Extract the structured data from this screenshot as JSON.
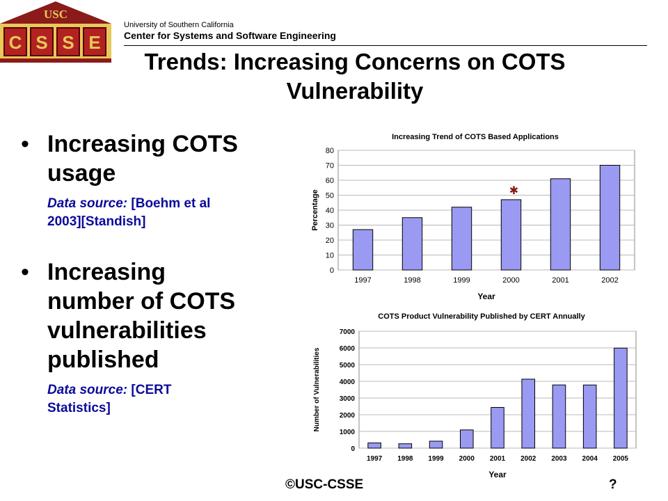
{
  "header": {
    "logo_top": "USC",
    "logo_letters": [
      "C",
      "S",
      "S",
      "E"
    ],
    "university": "University of Southern California",
    "center": "Center for Systems and Software Engineering"
  },
  "title": {
    "line1": "Trends: Increasing Concerns on COTS",
    "line2": "Vulnerability"
  },
  "bullets": [
    {
      "head_lines": [
        "Increasing COTS",
        "usage"
      ],
      "source_label": "Data source:",
      "source_lines": [
        "[Boehm et al",
        "2003][Standish]"
      ]
    },
    {
      "head_lines": [
        "Increasing",
        "number of COTS",
        "vulnerabilities",
        "published"
      ],
      "source_label": "Data source:",
      "source_lines": [
        "[CERT",
        "Statistics]"
      ]
    }
  ],
  "footer": {
    "copyright": "©USC-CSSE",
    "page": "?"
  },
  "colors": {
    "bar": "#9a9af2",
    "star": "#8b1a1a",
    "source_text": "#0a0a9c",
    "logo_red": "#b22222",
    "logo_gold": "#e8c85a"
  },
  "chart_data": [
    {
      "type": "bar",
      "title": "Increasing Trend of COTS Based Applications",
      "xlabel": "Year",
      "ylabel": "Percentage",
      "categories": [
        "1997",
        "1998",
        "1999",
        "2000",
        "2001",
        "2002"
      ],
      "values": [
        27,
        35,
        42,
        47,
        61,
        70
      ],
      "ylim": [
        0,
        80
      ],
      "yticks": [
        0,
        10,
        20,
        30,
        40,
        50,
        60,
        70,
        80
      ],
      "grid": true,
      "star_marker_category": "2000"
    },
    {
      "type": "bar",
      "title": "COTS Product Vulnerability Published by CERT Annually",
      "xlabel": "Year",
      "ylabel": "Number of Vulnerabilities",
      "categories": [
        "1997",
        "1998",
        "1999",
        "2000",
        "2001",
        "2002",
        "2003",
        "2004",
        "2005"
      ],
      "values": [
        311,
        262,
        417,
        1090,
        2437,
        4129,
        3784,
        3780,
        5990
      ],
      "ylim": [
        0,
        7000
      ],
      "yticks": [
        0,
        1000,
        2000,
        3000,
        4000,
        5000,
        6000,
        7000
      ],
      "grid": true
    }
  ]
}
